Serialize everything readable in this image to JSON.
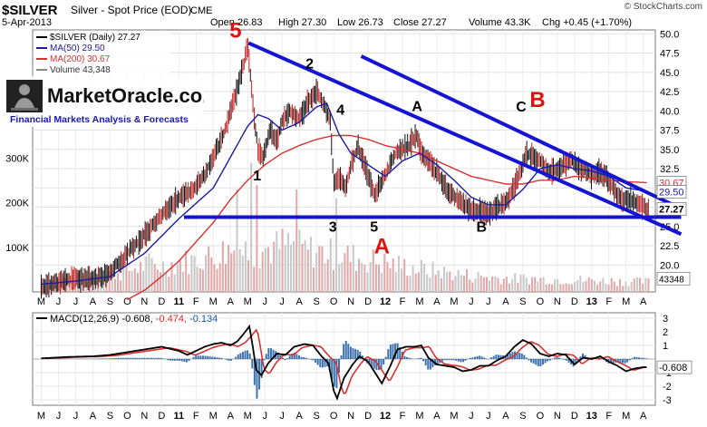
{
  "chart_data": {
    "type": "line",
    "symbol": "$SILVER",
    "title": "Silver - Spot Price (EOD)",
    "exchange": "CME",
    "date": "5-Apr-2013",
    "source": "© StockCharts.com",
    "quote": {
      "open_label": "Open",
      "open": "26.83",
      "high_label": "High",
      "high": "27.30",
      "low_label": "Low",
      "low": "26.73",
      "close_label": "Close",
      "close": "27.27",
      "volume_label": "Volume",
      "volume": "43.3K",
      "chg_label": "Chg",
      "chg": "+0.45 (+1.70%)"
    },
    "legend": [
      {
        "label": "$SILVER (Daily) 27.27",
        "color": "#000000"
      },
      {
        "label": "MA(50) 29.50",
        "color": "#1c1ca0"
      },
      {
        "label": "MA(200) 30.67",
        "color": "#d83030"
      },
      {
        "label": "Volume 43,348",
        "color": "#888888"
      }
    ],
    "price_ylim": [
      16.5,
      50.5
    ],
    "price_ticks": [
      "50.0",
      "47.5",
      "45.0",
      "42.5",
      "40.0",
      "37.5",
      "35.0",
      "32.5",
      "30.0",
      "27.5",
      "25.0",
      "22.5",
      "20.0"
    ],
    "volume_ticks": [
      "300K",
      "200K",
      "100K"
    ],
    "price_badges": {
      "ma200": "30.67",
      "ma50": "29.50",
      "last": "27.27",
      "volume": "43348"
    },
    "x_labels": [
      "M",
      "J",
      "J",
      "A",
      "S",
      "O",
      "N",
      "D",
      "11",
      "F",
      "M",
      "A",
      "M",
      "J",
      "J",
      "A",
      "S",
      "O",
      "N",
      "D",
      "12",
      "F",
      "M",
      "A",
      "M",
      "J",
      "J",
      "A",
      "S",
      "O",
      "N",
      "D",
      "13",
      "F",
      "M",
      "A"
    ],
    "x_range_months": [
      0,
      36
    ],
    "price_anchors": [
      [
        0,
        17.2
      ],
      [
        1,
        17.8
      ],
      [
        2,
        18.3
      ],
      [
        3,
        18.0
      ],
      [
        4,
        19.0
      ],
      [
        5,
        21.5
      ],
      [
        6,
        23.8
      ],
      [
        7,
        26.5
      ],
      [
        8,
        28.7
      ],
      [
        9,
        30.0
      ],
      [
        9.5,
        31.8
      ],
      [
        10,
        34.0
      ],
      [
        10.7,
        37.5
      ],
      [
        11,
        40.0
      ],
      [
        11.5,
        43.5
      ],
      [
        12,
        48.5
      ],
      [
        12.15,
        45.0
      ],
      [
        12.4,
        38.5
      ],
      [
        12.6,
        35.0
      ],
      [
        12.9,
        34.0
      ],
      [
        13.3,
        37.5
      ],
      [
        13.7,
        36.0
      ],
      [
        14,
        38.5
      ],
      [
        14.5,
        40.0
      ],
      [
        15,
        39.0
      ],
      [
        15.6,
        41.5
      ],
      [
        16,
        42.5
      ],
      [
        16.4,
        41.0
      ],
      [
        16.8,
        38.5
      ],
      [
        17.0,
        30.5
      ],
      [
        17.3,
        31.5
      ],
      [
        17.7,
        30.0
      ],
      [
        18,
        33.0
      ],
      [
        18.4,
        35.5
      ],
      [
        18.8,
        33.0
      ],
      [
        19.1,
        31.0
      ],
      [
        19.4,
        29.0
      ],
      [
        19.8,
        31.0
      ],
      [
        20.2,
        32.5
      ],
      [
        20.6,
        34.5
      ],
      [
        21,
        35.0
      ],
      [
        21.4,
        35.5
      ],
      [
        21.8,
        37.0
      ],
      [
        22.2,
        34.0
      ],
      [
        22.5,
        33.5
      ],
      [
        23,
        32.0
      ],
      [
        23.5,
        30.0
      ],
      [
        24,
        29.0
      ],
      [
        24.5,
        28.0
      ],
      [
        25,
        27.0
      ],
      [
        25.5,
        27.2
      ],
      [
        26,
        26.5
      ],
      [
        26.5,
        27.5
      ],
      [
        27,
        28.0
      ],
      [
        27.5,
        30.0
      ],
      [
        27.9,
        32.5
      ],
      [
        28.2,
        34.5
      ],
      [
        28.6,
        34.0
      ],
      [
        29,
        33.5
      ],
      [
        29.5,
        32.0
      ],
      [
        30,
        32.5
      ],
      [
        30.5,
        33.0
      ],
      [
        30.8,
        34.0
      ],
      [
        31.2,
        32.5
      ],
      [
        31.6,
        32.5
      ],
      [
        32,
        31.5
      ],
      [
        32.4,
        32.0
      ],
      [
        32.8,
        31.5
      ],
      [
        33.2,
        30.0
      ],
      [
        33.7,
        28.5
      ],
      [
        34.2,
        28.5
      ],
      [
        34.6,
        28.0
      ],
      [
        35,
        27.5
      ],
      [
        35.3,
        27.27
      ]
    ],
    "ma50_anchors": [
      [
        0,
        17.5
      ],
      [
        2,
        17.9
      ],
      [
        4,
        18.5
      ],
      [
        6,
        21.5
      ],
      [
        8,
        26.0
      ],
      [
        10,
        30.0
      ],
      [
        11,
        34.0
      ],
      [
        12,
        38.0
      ],
      [
        12.6,
        39.5
      ],
      [
        13.2,
        39.0
      ],
      [
        14,
        37.5
      ],
      [
        15,
        38.5
      ],
      [
        16,
        40.5
      ],
      [
        16.6,
        41.0
      ],
      [
        17.3,
        37.0
      ],
      [
        18,
        34.5
      ],
      [
        19,
        33.0
      ],
      [
        20,
        31.5
      ],
      [
        21,
        33.5
      ],
      [
        22,
        34.5
      ],
      [
        23,
        33.0
      ],
      [
        24,
        31.0
      ],
      [
        25,
        28.8
      ],
      [
        26,
        27.8
      ],
      [
        27,
        27.8
      ],
      [
        28,
        29.8
      ],
      [
        29,
        32.5
      ],
      [
        30,
        33.0
      ],
      [
        31,
        32.5
      ],
      [
        32,
        32.2
      ],
      [
        33,
        31.5
      ],
      [
        34,
        30.0
      ],
      [
        35.3,
        29.5
      ]
    ],
    "ma200_anchors": [
      [
        5,
        15.5
      ],
      [
        6,
        16.7
      ],
      [
        7,
        18.5
      ],
      [
        8,
        20.5
      ],
      [
        9,
        23.0
      ],
      [
        10,
        25.5
      ],
      [
        11,
        28.5
      ],
      [
        12,
        31.0
      ],
      [
        13,
        33.0
      ],
      [
        14,
        34.5
      ],
      [
        15,
        35.5
      ],
      [
        16,
        36.3
      ],
      [
        17,
        36.8
      ],
      [
        18,
        36.8
      ],
      [
        19,
        36.3
      ],
      [
        20,
        35.5
      ],
      [
        21,
        35.0
      ],
      [
        22,
        34.5
      ],
      [
        23,
        33.5
      ],
      [
        24,
        32.5
      ],
      [
        25,
        31.5
      ],
      [
        26,
        31.0
      ],
      [
        27,
        30.5
      ],
      [
        28,
        30.5
      ],
      [
        29,
        31.0
      ],
      [
        30,
        31.0
      ],
      [
        31,
        31.5
      ],
      [
        32,
        31.3
      ],
      [
        33,
        31.0
      ],
      [
        34,
        30.8
      ],
      [
        35.3,
        30.67
      ]
    ],
    "volume_ylim": [
      0,
      350
    ],
    "volume_levels": [
      22,
      24,
      25,
      28,
      26,
      30,
      32,
      35,
      38,
      40,
      42,
      44,
      48,
      50,
      55,
      60,
      62,
      60,
      58,
      62,
      65,
      68,
      70,
      75,
      80,
      78,
      85,
      90,
      95,
      100,
      95,
      90,
      92,
      95,
      98,
      100,
      105,
      102,
      98,
      95,
      92,
      90,
      88,
      85,
      82,
      80,
      78,
      75,
      72,
      70,
      68,
      65,
      62,
      60,
      58,
      55,
      52,
      50,
      48,
      46,
      44,
      42,
      40,
      38,
      36,
      35,
      34,
      33,
      32,
      31,
      30,
      30,
      30,
      30,
      29,
      29,
      28,
      28,
      28,
      27,
      27,
      26,
      26,
      25,
      25,
      25,
      24,
      24,
      24,
      23,
      23,
      23
    ],
    "volume_spikes": [
      [
        12.2,
        290
      ],
      [
        12.5,
        240
      ],
      [
        14.8,
        230
      ],
      [
        17.1,
        210
      ],
      [
        11.4,
        230
      ]
    ],
    "macd_label": "MACD(12,26,9)",
    "macd_values": "-0.608, -0.474, -0.134",
    "macd_colors": [
      "#d83030",
      "#1c5aa0"
    ],
    "macd_ylim": [
      -3.4,
      3.4
    ],
    "macd_ticks": [
      "3",
      "2",
      "1",
      "-1",
      "-2",
      "-3"
    ],
    "macd_badge": "-0.608",
    "macd_anchors": [
      [
        0,
        0.05
      ],
      [
        1.5,
        0.15
      ],
      [
        3,
        0.2
      ],
      [
        4,
        0.3
      ],
      [
        5,
        0.5
      ],
      [
        6,
        0.7
      ],
      [
        7,
        0.9
      ],
      [
        8,
        0.6
      ],
      [
        8.5,
        0.3
      ],
      [
        9,
        0.6
      ],
      [
        9.5,
        0.9
      ],
      [
        10,
        1.1
      ],
      [
        10.5,
        1.2
      ],
      [
        11,
        1.0
      ],
      [
        11.4,
        1.3
      ],
      [
        11.8,
        1.9
      ],
      [
        12.1,
        2.4
      ],
      [
        12.3,
        0.9
      ],
      [
        12.5,
        -0.8
      ],
      [
        12.8,
        -1.2
      ],
      [
        13.2,
        -0.3
      ],
      [
        13.7,
        0.4
      ],
      [
        14.2,
        0.3
      ],
      [
        14.7,
        0.9
      ],
      [
        15.3,
        1.1
      ],
      [
        15.8,
        1.0
      ],
      [
        16.3,
        0.2
      ],
      [
        16.7,
        -0.3
      ],
      [
        17.0,
        -2.3
      ],
      [
        17.2,
        -2.9
      ],
      [
        17.6,
        -1.4
      ],
      [
        18.1,
        -0.4
      ],
      [
        18.5,
        0.2
      ],
      [
        19,
        -0.2
      ],
      [
        19.4,
        -1.0
      ],
      [
        19.8,
        -1.8
      ],
      [
        20.3,
        -0.5
      ],
      [
        20.7,
        0.7
      ],
      [
        21.2,
        0.9
      ],
      [
        21.7,
        0.9
      ],
      [
        22.1,
        1.0
      ],
      [
        22.5,
        0.1
      ],
      [
        23,
        -0.4
      ],
      [
        23.5,
        -0.5
      ],
      [
        24,
        -0.6
      ],
      [
        24.5,
        -0.9
      ],
      [
        25,
        -0.8
      ],
      [
        25.5,
        -0.5
      ],
      [
        26,
        -0.5
      ],
      [
        26.5,
        -0.1
      ],
      [
        27,
        0.2
      ],
      [
        27.5,
        0.9
      ],
      [
        28,
        1.4
      ],
      [
        28.5,
        1.1
      ],
      [
        29,
        0.4
      ],
      [
        29.5,
        0.2
      ],
      [
        30,
        0.4
      ],
      [
        30.5,
        0.3
      ],
      [
        31,
        -0.4
      ],
      [
        31.5,
        0.1
      ],
      [
        32,
        0.0
      ],
      [
        32.5,
        0.2
      ],
      [
        33,
        -0.2
      ],
      [
        33.5,
        -0.5
      ],
      [
        34,
        -0.9
      ],
      [
        34.5,
        -0.7
      ],
      [
        35,
        -0.6
      ],
      [
        35.3,
        -0.608
      ]
    ],
    "annotations": [
      {
        "text": "5",
        "color": "#e01010",
        "big": true,
        "x": 11.3,
        "y": 49.5
      },
      {
        "text": "2",
        "color": "#000000",
        "big": false,
        "x": 15.6,
        "y": 45.5
      },
      {
        "text": "1",
        "color": "#000000",
        "big": false,
        "x": 12.55,
        "y": 31.0
      },
      {
        "text": "4",
        "color": "#000000",
        "big": false,
        "x": 17.4,
        "y": 39.5
      },
      {
        "text": "3",
        "color": "#000000",
        "big": false,
        "x": 16.95,
        "y": 24.3
      },
      {
        "text": "5",
        "color": "#000000",
        "big": false,
        "x": 19.35,
        "y": 24.3
      },
      {
        "text": "A",
        "color": "#e01010",
        "big": true,
        "x": 19.8,
        "y": 21.5
      },
      {
        "text": "A",
        "color": "#000000",
        "big": false,
        "x": 21.85,
        "y": 40.0
      },
      {
        "text": "B",
        "color": "#000000",
        "big": false,
        "x": 25.6,
        "y": 24.3
      },
      {
        "text": "C",
        "color": "#000000",
        "big": false,
        "x": 27.9,
        "y": 39.9
      },
      {
        "text": "B",
        "color": "#e01010",
        "big": true,
        "x": 28.85,
        "y": 40.5
      }
    ],
    "trendlines": [
      {
        "from": [
          12.05,
          48.8
        ],
        "to": [
          37.2,
          24.0
        ]
      },
      {
        "from": [
          18.6,
          47.1
        ],
        "to": [
          37.2,
          27.3
        ]
      },
      {
        "from": [
          8.3,
          26.2
        ],
        "to": [
          37.2,
          26.2
        ]
      }
    ],
    "trendline_color": "#1414d2"
  },
  "branding": {
    "logo_text": "MarketOracle.co.uk",
    "tagline": "Financial Markets Analysis & Forecasts"
  }
}
